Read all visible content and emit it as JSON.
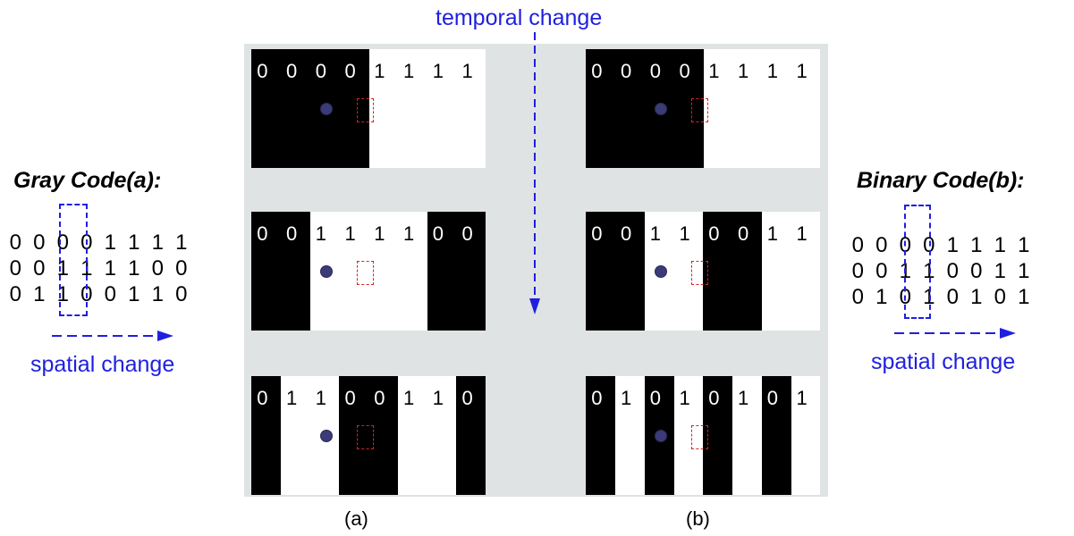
{
  "temporal_label": "temporal change",
  "left": {
    "title": "Gray Code(a):",
    "rows": [
      [
        "0",
        "0",
        "0",
        "0",
        "1",
        "1",
        "1",
        "1"
      ],
      [
        "0",
        "0",
        "1",
        "1",
        "1",
        "1",
        "0",
        "0"
      ],
      [
        "0",
        "1",
        "1",
        "0",
        "0",
        "1",
        "1",
        "0"
      ]
    ],
    "spatial_label": "spatial change"
  },
  "right": {
    "title": "Binary Code(b):",
    "rows": [
      [
        "0",
        "0",
        "0",
        "0",
        "1",
        "1",
        "1",
        "1"
      ],
      [
        "0",
        "0",
        "1",
        "1",
        "0",
        "0",
        "1",
        "1"
      ],
      [
        "0",
        "1",
        "0",
        "1",
        "0",
        "1",
        "0",
        "1"
      ]
    ],
    "spatial_label": "spatial change"
  },
  "panel_a": {
    "caption": "(a)",
    "patterns": [
      [
        "0",
        "0",
        "0",
        "0",
        "1",
        "1",
        "1",
        "1"
      ],
      [
        "0",
        "0",
        "1",
        "1",
        "1",
        "1",
        "0",
        "0"
      ],
      [
        "0",
        "1",
        "1",
        "0",
        "0",
        "1",
        "1",
        "0"
      ]
    ]
  },
  "panel_b": {
    "caption": "(b)",
    "patterns": [
      [
        "0",
        "0",
        "0",
        "0",
        "1",
        "1",
        "1",
        "1"
      ],
      [
        "0",
        "0",
        "1",
        "1",
        "0",
        "0",
        "1",
        "1"
      ],
      [
        "0",
        "1",
        "0",
        "1",
        "0",
        "1",
        "0",
        "1"
      ]
    ]
  },
  "colors": {
    "accent_blue": "#1f1fe0",
    "marker_red": "#e02020",
    "panel_gray": "#dfe3e3",
    "dot": "#3b3b78"
  }
}
